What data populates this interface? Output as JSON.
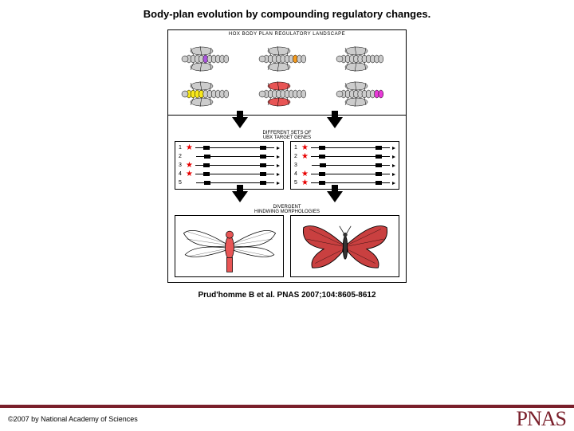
{
  "title": "Body-plan evolution by compounding regulatory changes.",
  "top_panel_header": "HOX BODY PLAN REGULATORY LANDSCAPE",
  "mid_label_1": "DIFFERENT SETS OF\nUBX TARGET GENES",
  "mid_label_2": "DIVERGENT\nHINDWING MORPHOLOGIES",
  "flies": [
    {
      "seg_colors": [
        "#cccccc",
        "#cccccc",
        "#cccccc",
        "#cccccc",
        "#aa55dd",
        "#cccccc",
        "#cccccc",
        "#cccccc",
        "#cccccc",
        "#cccccc"
      ],
      "wing": "#cccccc"
    },
    {
      "seg_colors": [
        "#cccccc",
        "#cccccc",
        "#cccccc",
        "#cccccc",
        "#cccccc",
        "#cccccc",
        "#cccccc",
        "#f59b1e",
        "#cccccc",
        "#cccccc"
      ],
      "wing": "#cccccc"
    },
    {
      "seg_colors": [
        "#cccccc",
        "#cccccc",
        "#cccccc",
        "#cccccc",
        "#cccccc",
        "#cccccc",
        "#cccccc",
        "#cccccc",
        "#cccccc",
        "#cccccc"
      ],
      "wing": "#cccccc"
    },
    {
      "seg_colors": [
        "#f8e81c",
        "#f8e81c",
        "#f8e81c",
        "#f8e81c",
        "#cccccc",
        "#cccccc",
        "#cccccc",
        "#cccccc",
        "#cccccc",
        "#cccccc"
      ],
      "wing": "#cccccc"
    },
    {
      "seg_colors": [
        "#cccccc",
        "#cccccc",
        "#cccccc",
        "#cccccc",
        "#cccccc",
        "#cccccc",
        "#cccccc",
        "#cccccc",
        "#cccccc",
        "#cccccc"
      ],
      "wing": "#e85555"
    },
    {
      "seg_colors": [
        "#cccccc",
        "#cccccc",
        "#cccccc",
        "#cccccc",
        "#cccccc",
        "#cccccc",
        "#cccccc",
        "#cccccc",
        "#e83ad8",
        "#e83ad8"
      ],
      "wing": "#cccccc"
    }
  ],
  "gene_lists": {
    "left": [
      {
        "n": "1",
        "star": true
      },
      {
        "n": "2",
        "star": false
      },
      {
        "n": "3",
        "star": true
      },
      {
        "n": "4",
        "star": true
      },
      {
        "n": "5",
        "star": false
      }
    ],
    "right": [
      {
        "n": "1",
        "star": true
      },
      {
        "n": "2",
        "star": true
      },
      {
        "n": "3",
        "star": false
      },
      {
        "n": "4",
        "star": true
      },
      {
        "n": "5",
        "star": true
      }
    ]
  },
  "citation": "Prud'homme B et al. PNAS 2007;104:8605-8612",
  "copyright": "©2007 by National Academy of Sciences",
  "logo": "PNAS",
  "colors": {
    "brand": "#7a1f2b",
    "star": "#e80000",
    "fly_body": "#e85555",
    "butterfly_wing": "#c94040"
  }
}
